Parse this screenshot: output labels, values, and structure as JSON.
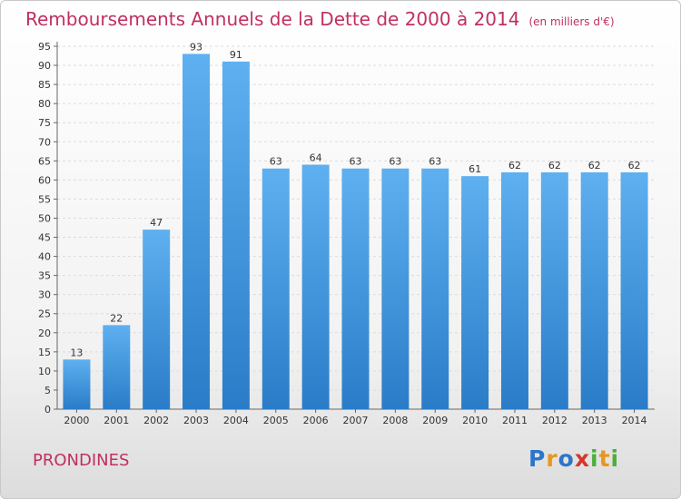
{
  "chart_data": {
    "type": "bar",
    "title": "Remboursements Annuels de la Dette de 2000 à 2014",
    "subtitle": "(en milliers d'€)",
    "categories": [
      "2000",
      "2001",
      "2002",
      "2003",
      "2004",
      "2005",
      "2006",
      "2007",
      "2008",
      "2009",
      "2010",
      "2011",
      "2012",
      "2013",
      "2014"
    ],
    "values": [
      13,
      22,
      47,
      93,
      91,
      63,
      64,
      63,
      63,
      63,
      61,
      62,
      62,
      62,
      62
    ],
    "ylim": [
      0,
      95
    ],
    "yticks": [
      0,
      5,
      10,
      15,
      20,
      25,
      30,
      35,
      40,
      45,
      50,
      55,
      60,
      65,
      70,
      75,
      80,
      85,
      90,
      95
    ],
    "grid": true,
    "bar_color": "#4a9be0"
  },
  "commune": "PRONDINES",
  "logo": {
    "letters": [
      "P",
      "r",
      "o",
      "x",
      "i",
      "t",
      "i"
    ],
    "colors": [
      "#2b76c9",
      "#e8961e",
      "#2b76c9",
      "#d8352a",
      "#4caf3a",
      "#e8961e",
      "#4caf3a"
    ]
  }
}
